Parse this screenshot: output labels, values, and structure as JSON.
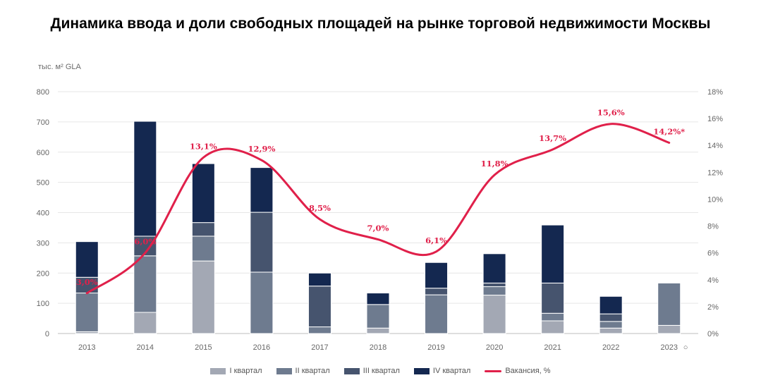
{
  "title": "Динамика ввода и доли свободных площадей на рынке торговой недвижимости Москвы",
  "chart_data": {
    "type": "bar",
    "stacked": true,
    "title": "Динамика ввода и доли свободных площадей на рынке торговой недвижимости Москвы",
    "ylabel": "тыс. м² GLA",
    "categories": [
      "2013",
      "2014",
      "2015",
      "2016",
      "2017",
      "2018",
      "2019",
      "2020",
      "2021",
      "2022",
      "2023"
    ],
    "category_markers": [
      "",
      "",
      "",
      "",
      "",
      "",
      "",
      "",
      "",
      "",
      "○"
    ],
    "ylim": [
      0,
      800
    ],
    "yticks": [
      "0",
      "100",
      "200",
      "300",
      "400",
      "500",
      "600",
      "700",
      "800"
    ],
    "y2lim": [
      0,
      18
    ],
    "y2ticks": [
      "0%",
      "2%",
      "4%",
      "6%",
      "8%",
      "10%",
      "12%",
      "14%",
      "16%",
      "18%"
    ],
    "series": [
      {
        "name": "I квартал",
        "color": "#a3a8b4",
        "values": [
          6,
          70,
          240,
          0,
          0,
          18,
          0,
          127,
          42,
          18,
          27
        ]
      },
      {
        "name": "II квартал",
        "color": "#6e7b8f",
        "values": [
          128,
          187,
          82,
          203,
          22,
          78,
          128,
          28,
          25,
          22,
          140
        ]
      },
      {
        "name": "III квартал",
        "color": "#46546e",
        "values": [
          52,
          65,
          45,
          198,
          135,
          0,
          22,
          12,
          100,
          25,
          0
        ]
      },
      {
        "name": "IV квартал",
        "color": "#142850",
        "values": [
          118,
          380,
          195,
          148,
          43,
          38,
          85,
          97,
          192,
          58,
          0
        ]
      }
    ],
    "line": {
      "name": "Вакансия, %",
      "color": "#e0204a",
      "values": [
        3.0,
        6.0,
        13.1,
        12.9,
        8.5,
        7.0,
        6.1,
        11.8,
        13.7,
        15.6,
        14.2
      ],
      "labels": [
        "3,0%",
        "6,0%",
        "13,1%",
        "12,9%",
        "8,5%",
        "7,0%",
        "6,1%",
        "11,8%",
        "13,7%",
        "15,6%",
        "14,2%*"
      ]
    },
    "grid": true,
    "legend_position": "bottom"
  }
}
